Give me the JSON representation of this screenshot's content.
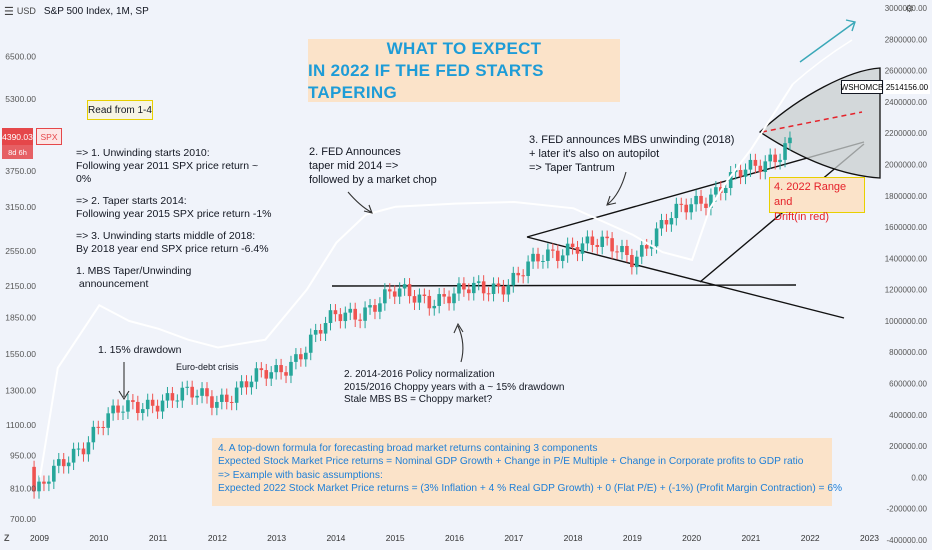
{
  "header": {
    "symbol_title": "S&P 500 Index, 1M, SP",
    "log_label": "USD"
  },
  "price_tag": {
    "value": "4390.03",
    "symbol": "SPX",
    "time_left": "8d 6h"
  },
  "wsh_tag": {
    "name": "WSHOMCB",
    "value": "2514156.00"
  },
  "title": {
    "line1": "WHAT TO EXPECT",
    "line2": "IN 2022 IF THE FED STARTS TAPERING"
  },
  "read_box": "Read from 1-4",
  "notes_left": [
    "=> 1. Unwinding starts 2010:",
    "Following year 2011 SPX price return ~ 0%",
    "",
    "=> 2. Taper starts 2014:",
    "Following year 2015 SPX price return -1%",
    "",
    "=> 3. Unwinding starts middle of 2018:",
    "By 2018 year end SPX price return -6.4%",
    "",
    "1. MBS Taper/Unwinding",
    " announcement"
  ],
  "annotations": {
    "fed_announces": [
      "2. FED Announces",
      "taper mid 2014 =>",
      "followed by a market chop"
    ],
    "mbs_unwinding": [
      "3. FED announces MBS unwinding (2018)",
      "+ later it's also on autopilot",
      "=> Taper Tantrum"
    ],
    "drawdown": "1. 15% drawdown",
    "euro_debt": "Euro-debt crisis",
    "policy_norm": [
      "2. 2014-2016 Policy normalization",
      "2015/2016 Choppy years with a ~ 15% drawdown",
      "Stale MBS BS = Choppy market?"
    ]
  },
  "range_box": [
    "4. 2022 Range and",
    "Drift(in red)"
  ],
  "formula": [
    "4. A top-down formula for forecasting broad market returns containing 3 components",
    "Expected Stock Market Price returns = Nominal GDP Growth + Change in P/E Multiple + Change in Corporate profits to GDP ratio",
    "=> Example with basic assumptions:",
    "Expected 2022 Stock Market Price returns = (3% Inflation + 4 % Real GDP Growth) + 0 (Flat P/E) + (-1%) (Profit Margin Contraction) = 6%"
  ],
  "colors": {
    "background": "#f0f3fa",
    "up": "#26a69a",
    "down": "#ef5350",
    "overlay_line": "#ffffff",
    "accent_blue": "#1e9cd7",
    "forecast_red": "#e5222a"
  },
  "chart_data": {
    "type": "candlestick",
    "left_axis": {
      "scale": "log",
      "ticks": [
        "700.00",
        "810.00",
        "950.00",
        "1100.00",
        "1300.00",
        "1550.00",
        "1850.00",
        "2150.00",
        "2550.00",
        "3150.00",
        "3750.00",
        "5300.00",
        "6500.00"
      ]
    },
    "right_axis": {
      "ticks": [
        "3000000.00",
        "2800000.00",
        "2600000.00",
        "2400000.00",
        "2200000.00",
        "2000000.00",
        "1800000.00",
        "1600000.00",
        "1400000.00",
        "1200000.00",
        "1000000.00",
        "800000.00",
        "600000.00",
        "400000.00",
        "200000.00",
        "0.00",
        "-200000.00",
        "-400000.00"
      ]
    },
    "x_axis": {
      "ticks": [
        "2009",
        "2010",
        "2011",
        "2012",
        "2013",
        "2014",
        "2015",
        "2016",
        "2017",
        "2018",
        "2019",
        "2020",
        "2021",
        "2022",
        "2023"
      ]
    },
    "price_series": {
      "name": "SPX",
      "yearly_closes": [
        {
          "x": 2009.0,
          "y": 800
        },
        {
          "x": 2010.0,
          "y": 1115
        },
        {
          "x": 2011.0,
          "y": 1258
        },
        {
          "x": 2012.0,
          "y": 1258
        },
        {
          "x": 2013.0,
          "y": 1426
        },
        {
          "x": 2014.0,
          "y": 1848
        },
        {
          "x": 2015.0,
          "y": 2059
        },
        {
          "x": 2016.0,
          "y": 2044
        },
        {
          "x": 2017.0,
          "y": 2239
        },
        {
          "x": 2018.0,
          "y": 2674
        },
        {
          "x": 2019.0,
          "y": 2507
        },
        {
          "x": 2020.0,
          "y": 3231
        },
        {
          "x": 2021.0,
          "y": 3756
        },
        {
          "x": 2021.7,
          "y": 4390
        }
      ]
    },
    "overlay_series": {
      "name": "WSHOMCB",
      "points": [
        {
          "x": 2009.0,
          "y": 0
        },
        {
          "x": 2009.3,
          "y": 700000
        },
        {
          "x": 2010.0,
          "y": 1100000
        },
        {
          "x": 2010.5,
          "y": 1000000
        },
        {
          "x": 2011.0,
          "y": 950000
        },
        {
          "x": 2011.5,
          "y": 880000
        },
        {
          "x": 2012.0,
          "y": 830000
        },
        {
          "x": 2012.8,
          "y": 880000
        },
        {
          "x": 2013.5,
          "y": 1200000
        },
        {
          "x": 2014.0,
          "y": 1500000
        },
        {
          "x": 2014.5,
          "y": 1680000
        },
        {
          "x": 2015.0,
          "y": 1730000
        },
        {
          "x": 2016.0,
          "y": 1750000
        },
        {
          "x": 2017.0,
          "y": 1760000
        },
        {
          "x": 2018.0,
          "y": 1720000
        },
        {
          "x": 2019.0,
          "y": 1550000
        },
        {
          "x": 2019.5,
          "y": 1440000
        },
        {
          "x": 2020.0,
          "y": 1390000
        },
        {
          "x": 2020.3,
          "y": 1720000
        },
        {
          "x": 2020.6,
          "y": 1900000
        },
        {
          "x": 2021.0,
          "y": 2100000
        },
        {
          "x": 2021.7,
          "y": 2514156
        }
      ]
    },
    "forecast": {
      "label": "2022 Range and Drift",
      "color": "#e5222a"
    }
  }
}
